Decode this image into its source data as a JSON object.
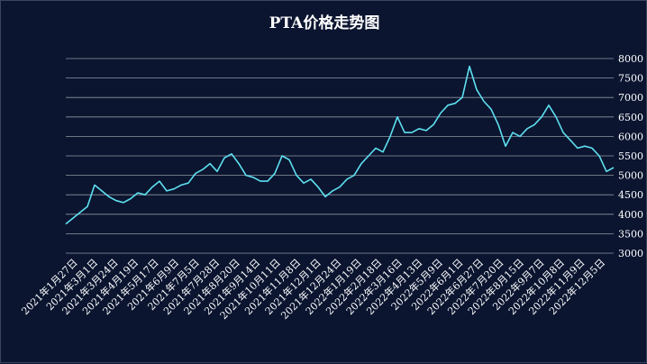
{
  "chart_data": {
    "type": "line",
    "title": "PTA价格走势图",
    "xlabel": "",
    "ylabel": "",
    "ylim": [
      3000,
      8000
    ],
    "yticks": [
      "3000",
      "3500",
      "4000",
      "4500",
      "5000",
      "5500",
      "6000",
      "6500",
      "7000",
      "7500",
      "8000"
    ],
    "grid": true,
    "line_color": "#5ee0f0",
    "x_tick_labels": [
      "2021年1月27日",
      "2021年3月1日",
      "2021年3月24日",
      "2021年4月19日",
      "2021年5月17日",
      "2021年6月9日",
      "2021年7月5日",
      "2021年7月28日",
      "2021年8月20日",
      "2021年9月14日",
      "2021年10月11日",
      "2021年11月8日",
      "2021年12月1日",
      "2021年12月24日",
      "2022年1月19日",
      "2022年2月18日",
      "2022年3月16日",
      "2022年4月13日",
      "2022年5月9日",
      "2022年6月1日",
      "2022年6月27日",
      "2022年7月20日",
      "2022年8月15日",
      "2022年9月7日",
      "2022年10月8日",
      "2022年11月9日",
      "2022年12月5日"
    ],
    "series": [
      {
        "values": [
          3750,
          3900,
          4050,
          4200,
          4750,
          4600,
          4450,
          4350,
          4300,
          4400,
          4550,
          4500,
          4700,
          4850,
          4600,
          4650,
          4750,
          4800,
          5050,
          5150,
          5300,
          5100,
          5450,
          5550,
          5300,
          5000,
          4950,
          4850,
          4850,
          5050,
          5500,
          5400,
          5000,
          4800,
          4900,
          4700,
          4450,
          4600,
          4700,
          4900,
          5000,
          5300,
          5500,
          5700,
          5600,
          6000,
          6500,
          6100,
          6100,
          6200,
          6150,
          6300,
          6600,
          6800,
          6850,
          7000,
          7800,
          7200,
          6900,
          6700,
          6300,
          5750,
          6100,
          6000,
          6200,
          6300,
          6500,
          6800,
          6500,
          6100,
          5900,
          5700,
          5750,
          5700,
          5500,
          5100,
          5200
        ]
      }
    ]
  }
}
